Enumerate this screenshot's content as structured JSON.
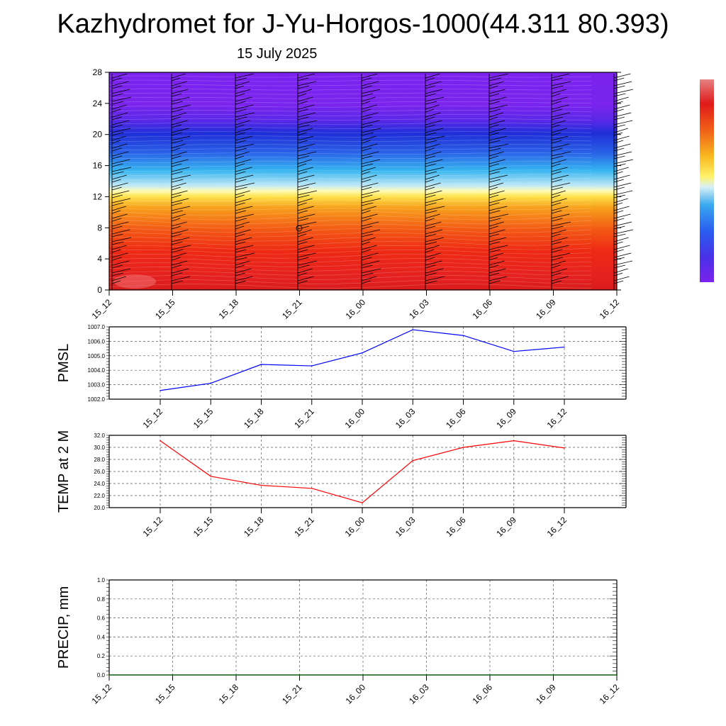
{
  "title": "Kazhydromet for J-Yu-Horgos-1000(44.311 80.393)",
  "subtitle": "15 July 2025",
  "time_labels": [
    "15_12",
    "15_15",
    "15_18",
    "15_21",
    "16_00",
    "16_03",
    "16_06",
    "16_09",
    "16_12"
  ],
  "chart_data": [
    {
      "type": "heatmap",
      "title": "",
      "ylabel": "",
      "x_ticks": [
        "15_12",
        "15_15",
        "15_18",
        "15_21",
        "16_00",
        "16_03",
        "16_06",
        "16_09",
        "16_12"
      ],
      "y_ticks": [
        0,
        4,
        8,
        12,
        16,
        20,
        24,
        28
      ],
      "ylim": [
        0,
        28
      ],
      "description_bands": [
        {
          "from": 0,
          "to": 2,
          "color": "#e03030"
        },
        {
          "from": 2,
          "to": 8,
          "color": "#ee1d1d"
        },
        {
          "from": 8,
          "to": 12,
          "color": "#f68a1e"
        },
        {
          "from": 12,
          "to": 13,
          "color": "#fff37a"
        },
        {
          "from": 13,
          "to": 17,
          "color": "#3fb8f0"
        },
        {
          "from": 17,
          "to": 21,
          "color": "#1f3fe0"
        },
        {
          "from": 21,
          "to": 28,
          "color": "#7a22ee"
        }
      ],
      "colorbar": [
        "#7b2de8",
        "#4a3ef0",
        "#2a5cf5",
        "#2f8ef8",
        "#56c3f5",
        "#c8ebf3",
        "#fff26a",
        "#f8c420",
        "#f58a1a",
        "#ee4a1a",
        "#e31a1c",
        "#e06060"
      ]
    },
    {
      "type": "line",
      "ylabel": "PMSL",
      "x": [
        "15_12",
        "15_15",
        "15_18",
        "15_21",
        "16_00",
        "16_03",
        "16_06",
        "16_09",
        "16_12"
      ],
      "series": [
        {
          "values": [
            1002.6,
            1003.1,
            1004.4,
            1004.3,
            1005.2,
            1006.8,
            1006.4,
            1005.3,
            1005.6
          ],
          "color": "#0000ff"
        }
      ],
      "ylim": [
        1002.0,
        1007.0
      ],
      "y_ticks": [
        "1002.0",
        "1003.0",
        "1004.0",
        "1005.0",
        "1006.0",
        "1007.0"
      ]
    },
    {
      "type": "line",
      "ylabel": "TEMP at 2 M",
      "x": [
        "15_12",
        "15_15",
        "15_18",
        "15_21",
        "16_00",
        "16_03",
        "16_06",
        "16_09",
        "16_12"
      ],
      "series": [
        {
          "values": [
            31.1,
            25.2,
            23.7,
            23.2,
            20.8,
            27.8,
            30.0,
            31.1,
            29.9
          ],
          "color": "#ff0000"
        }
      ],
      "ylim": [
        20.0,
        32.0
      ],
      "y_ticks": [
        "20.0",
        "22.0",
        "24.0",
        "26.0",
        "28.0",
        "30.0",
        "32.0"
      ]
    },
    {
      "type": "line",
      "ylabel": "PRECIP, mm",
      "x": [
        "15_12",
        "15_15",
        "15_18",
        "15_21",
        "16_00",
        "16_03",
        "16_06",
        "16_09",
        "16_12"
      ],
      "series": [
        {
          "values": [
            0,
            0,
            0,
            0,
            0,
            0,
            0,
            0,
            0
          ],
          "color": "#006400"
        }
      ],
      "ylim": [
        0.0,
        1.0
      ],
      "y_ticks": [
        "0.0",
        "0.2",
        "0.4",
        "0.6",
        "0.8",
        "1.0"
      ]
    }
  ]
}
